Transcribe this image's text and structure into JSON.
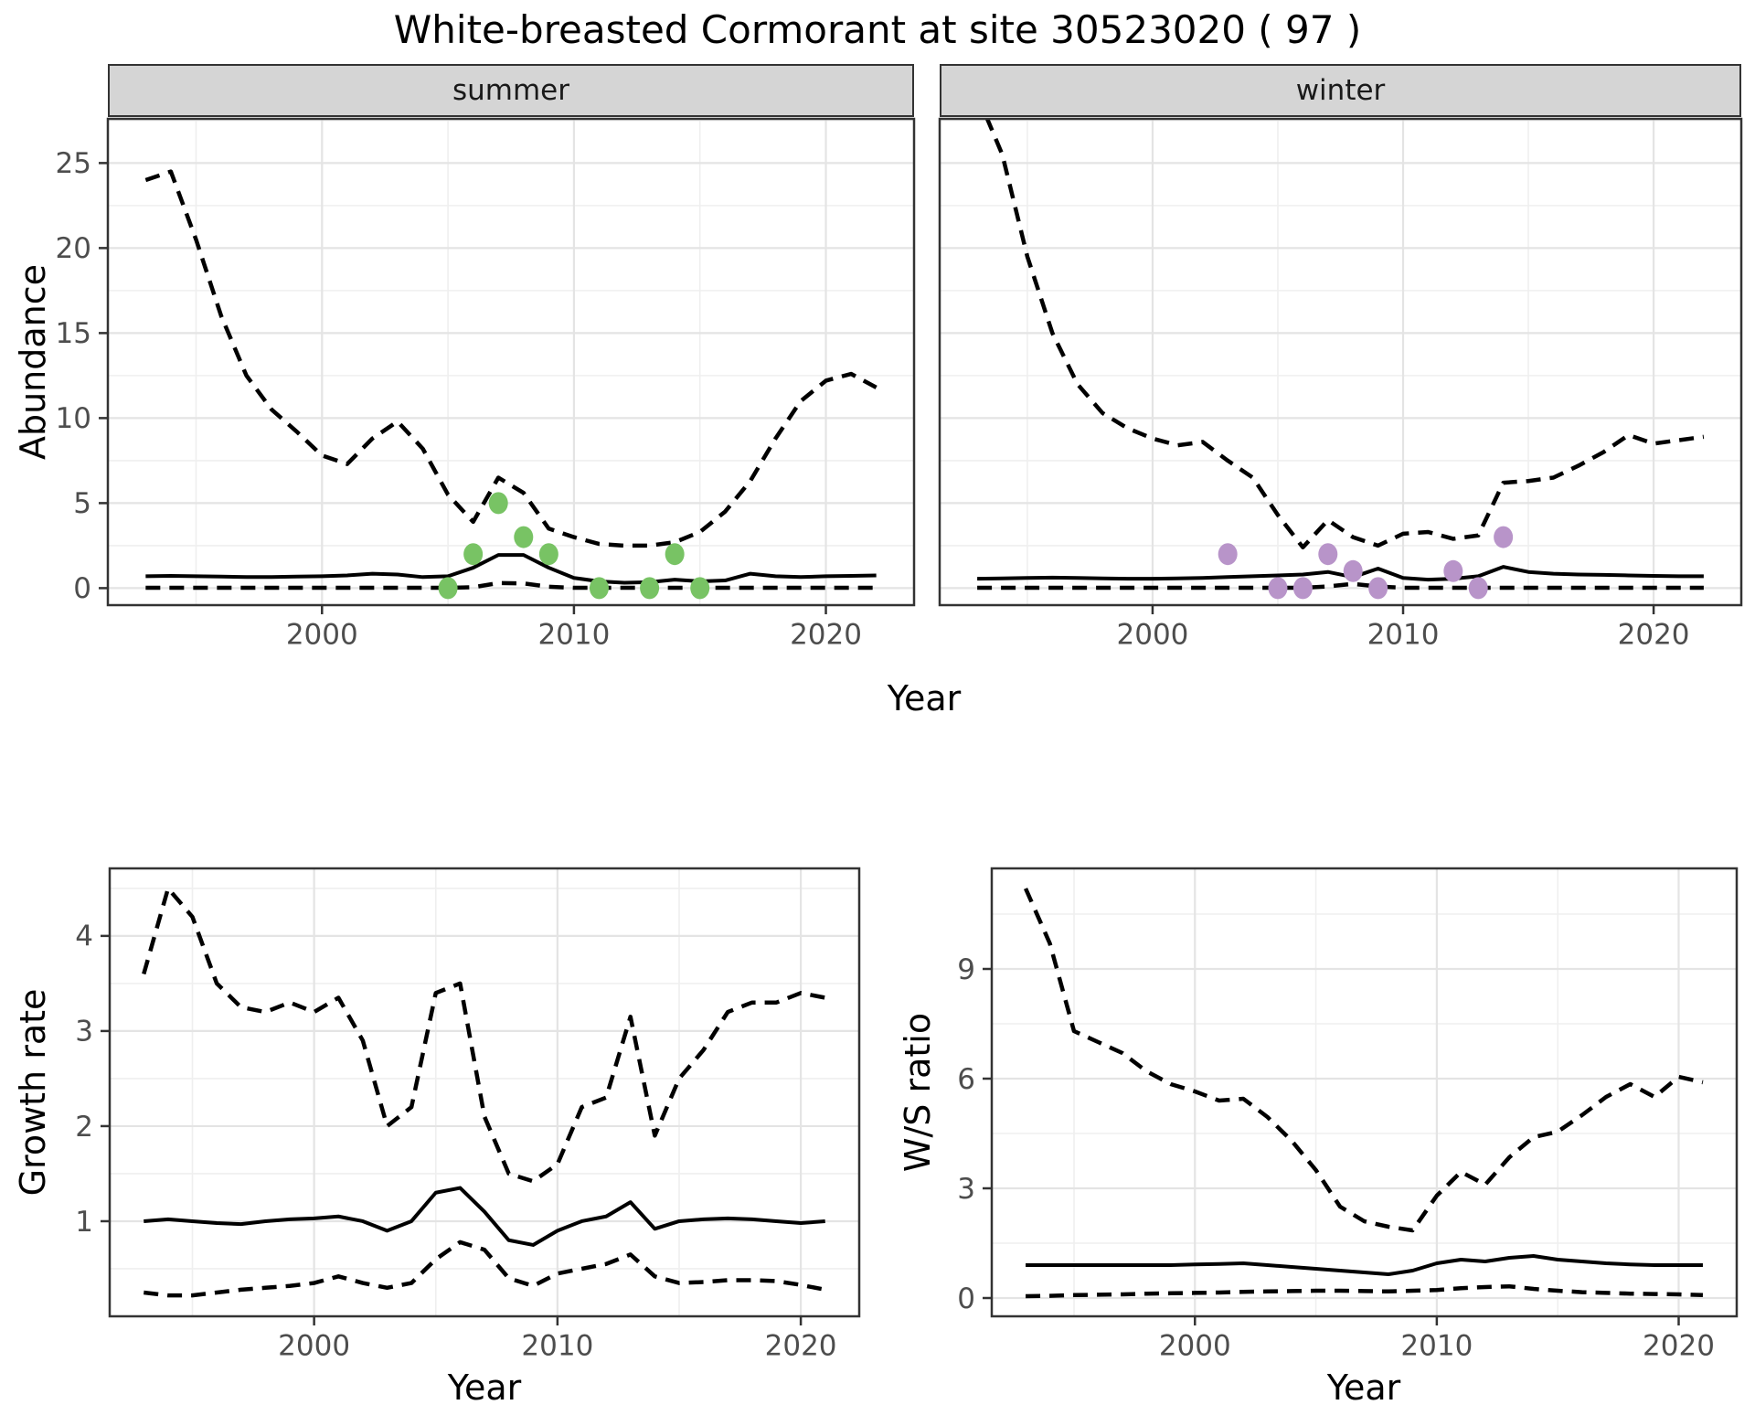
{
  "title": "White-breasted Cormorant at site 30523020 ( 97 )",
  "axes": {
    "abundance": "Abundance",
    "year": "Year",
    "growth_rate": "Growth rate",
    "ws_ratio": "W/S ratio"
  },
  "facets": {
    "summer": "summer",
    "winter": "winter"
  },
  "colors": {
    "line": "#000000",
    "summer_points": "#78C364",
    "winter_points": "#B894C9",
    "strip_bg": "#d5d5d5",
    "grid_major": "#e4e4e4",
    "grid_minor": "#efefef",
    "axis_text": "#4d4d4d",
    "panel_border": "#333333"
  },
  "chart_data": [
    {
      "id": "abundance-summer",
      "type": "line",
      "facet": "summer",
      "title": "",
      "xlabel": "Year",
      "ylabel": "Abundance",
      "x": [
        1993,
        1994,
        1995,
        1996,
        1997,
        1998,
        1999,
        2000,
        2001,
        2002,
        2003,
        2004,
        2005,
        2006,
        2007,
        2008,
        2009,
        2010,
        2011,
        2012,
        2013,
        2014,
        2015,
        2016,
        2017,
        2018,
        2019,
        2020,
        2021,
        2022
      ],
      "series": [
        {
          "name": "upper_ci",
          "style": "dashed",
          "values": [
            24.0,
            24.5,
            20.5,
            16.0,
            12.5,
            10.5,
            9.2,
            7.8,
            7.3,
            8.8,
            9.8,
            8.2,
            5.5,
            3.9,
            6.5,
            5.6,
            3.5,
            3.0,
            2.6,
            2.5,
            2.5,
            2.7,
            3.3,
            4.5,
            6.3,
            8.8,
            11.0,
            12.2,
            12.6,
            11.8
          ]
        },
        {
          "name": "median",
          "style": "solid",
          "values": [
            0.7,
            0.72,
            0.7,
            0.68,
            0.65,
            0.65,
            0.68,
            0.7,
            0.75,
            0.85,
            0.8,
            0.65,
            0.7,
            1.2,
            1.95,
            1.95,
            1.2,
            0.6,
            0.4,
            0.32,
            0.35,
            0.5,
            0.4,
            0.45,
            0.85,
            0.7,
            0.65,
            0.7,
            0.72,
            0.75
          ]
        },
        {
          "name": "lower_ci",
          "style": "dashed",
          "values": [
            0.02,
            0.02,
            0.02,
            0.02,
            0.02,
            0.02,
            0.02,
            0.02,
            0.02,
            0.02,
            0.02,
            0.02,
            0.02,
            0.05,
            0.3,
            0.28,
            0.08,
            0.02,
            0.02,
            0.02,
            0.02,
            0.02,
            0.02,
            0.02,
            0.02,
            0.02,
            0.02,
            0.02,
            0.02,
            0.02
          ]
        }
      ],
      "points": {
        "name": "summer_observations",
        "color": "#78C364",
        "data": [
          [
            2005,
            0
          ],
          [
            2006,
            2
          ],
          [
            2007,
            5
          ],
          [
            2008,
            3
          ],
          [
            2009,
            2
          ],
          [
            2011,
            0
          ],
          [
            2013,
            0
          ],
          [
            2014,
            2
          ],
          [
            2015,
            0
          ]
        ]
      },
      "xticks": [
        2000,
        2010,
        2020
      ],
      "yticks": [
        0,
        5,
        10,
        15,
        20,
        25
      ],
      "xlim": [
        1991.5,
        2023.5
      ],
      "ylim": [
        -1.0,
        27.6
      ],
      "grid": true,
      "legend": "none"
    },
    {
      "id": "abundance-winter",
      "type": "line",
      "facet": "winter",
      "title": "",
      "xlabel": "Year",
      "ylabel": "Abundance",
      "x": [
        1993,
        1994,
        1995,
        1996,
        1997,
        1998,
        1999,
        2000,
        2001,
        2002,
        2003,
        2004,
        2005,
        2006,
        2007,
        2008,
        2009,
        2010,
        2011,
        2012,
        2013,
        2014,
        2015,
        2016,
        2017,
        2018,
        2019,
        2020,
        2021,
        2022
      ],
      "series": [
        {
          "name": "upper_ci",
          "style": "dashed",
          "values": [
            29.0,
            25.5,
            19.5,
            15.0,
            12.0,
            10.3,
            9.4,
            8.8,
            8.4,
            8.6,
            7.5,
            6.5,
            4.3,
            2.4,
            4.0,
            3.0,
            2.5,
            3.2,
            3.3,
            2.9,
            3.1,
            6.2,
            6.3,
            6.5,
            7.2,
            8.0,
            9.0,
            8.5,
            8.7,
            8.9
          ]
        },
        {
          "name": "median",
          "style": "solid",
          "values": [
            0.55,
            0.57,
            0.6,
            0.62,
            0.6,
            0.57,
            0.55,
            0.55,
            0.57,
            0.6,
            0.65,
            0.7,
            0.75,
            0.8,
            0.95,
            0.65,
            1.15,
            0.6,
            0.5,
            0.55,
            0.7,
            1.25,
            0.95,
            0.85,
            0.8,
            0.78,
            0.75,
            0.72,
            0.7,
            0.7
          ]
        },
        {
          "name": "lower_ci",
          "style": "dashed",
          "values": [
            0.02,
            0.02,
            0.02,
            0.02,
            0.02,
            0.02,
            0.02,
            0.02,
            0.02,
            0.02,
            0.02,
            0.02,
            0.02,
            0.02,
            0.1,
            0.25,
            0.1,
            0.02,
            0.02,
            0.02,
            0.02,
            0.02,
            0.02,
            0.02,
            0.02,
            0.02,
            0.02,
            0.02,
            0.02,
            0.02
          ]
        }
      ],
      "points": {
        "name": "winter_observations",
        "color": "#B894C9",
        "data": [
          [
            2003,
            2
          ],
          [
            2005,
            0
          ],
          [
            2006,
            0
          ],
          [
            2007,
            2
          ],
          [
            2008,
            1
          ],
          [
            2009,
            0
          ],
          [
            2012,
            1
          ],
          [
            2013,
            0
          ],
          [
            2014,
            3
          ]
        ]
      },
      "xticks": [
        2000,
        2010,
        2020
      ],
      "yticks": [
        0,
        5,
        10,
        15,
        20,
        25
      ],
      "xlim": [
        1991.5,
        2023.5
      ],
      "ylim": [
        -1.0,
        27.6
      ],
      "grid": true,
      "legend": "none",
      "y_axis_labels": false
    },
    {
      "id": "growth-rate",
      "type": "line",
      "facet": "",
      "title": "",
      "xlabel": "Year",
      "ylabel": "Growth rate",
      "x": [
        1993,
        1994,
        1995,
        1996,
        1997,
        1998,
        1999,
        2000,
        2001,
        2002,
        2003,
        2004,
        2005,
        2006,
        2007,
        2008,
        2009,
        2010,
        2011,
        2012,
        2013,
        2014,
        2015,
        2016,
        2017,
        2018,
        2019,
        2020,
        2021
      ],
      "series": [
        {
          "name": "upper_ci",
          "style": "dashed",
          "values": [
            3.6,
            4.5,
            4.2,
            3.5,
            3.25,
            3.2,
            3.3,
            3.2,
            3.35,
            2.9,
            2.0,
            2.2,
            3.4,
            3.5,
            2.1,
            1.5,
            1.42,
            1.6,
            2.2,
            2.3,
            3.15,
            1.9,
            2.5,
            2.8,
            3.2,
            3.3,
            3.3,
            3.4,
            3.35
          ]
        },
        {
          "name": "median",
          "style": "solid",
          "values": [
            1.0,
            1.02,
            1.0,
            0.98,
            0.97,
            1.0,
            1.02,
            1.03,
            1.05,
            1.0,
            0.9,
            1.0,
            1.3,
            1.35,
            1.1,
            0.8,
            0.75,
            0.9,
            1.0,
            1.05,
            1.2,
            0.92,
            1.0,
            1.02,
            1.03,
            1.02,
            1.0,
            0.98,
            1.0
          ]
        },
        {
          "name": "lower_ci",
          "style": "dashed",
          "values": [
            0.25,
            0.22,
            0.22,
            0.25,
            0.28,
            0.3,
            0.32,
            0.35,
            0.42,
            0.35,
            0.3,
            0.35,
            0.6,
            0.78,
            0.7,
            0.4,
            0.32,
            0.45,
            0.5,
            0.55,
            0.65,
            0.42,
            0.35,
            0.36,
            0.38,
            0.38,
            0.37,
            0.33,
            0.28
          ]
        }
      ],
      "points": {
        "name": "none",
        "color": "#000000",
        "data": []
      },
      "xticks": [
        2000,
        2010,
        2020
      ],
      "yticks": [
        1,
        2,
        3,
        4
      ],
      "xlim": [
        1991.6,
        2022.4
      ],
      "ylim": [
        0.0,
        4.71
      ],
      "grid": true,
      "legend": "none"
    },
    {
      "id": "ws-ratio",
      "type": "line",
      "facet": "",
      "title": "",
      "xlabel": "Year",
      "ylabel": "W/S ratio",
      "x": [
        1993,
        1994,
        1995,
        1996,
        1997,
        1998,
        1999,
        2000,
        2001,
        2002,
        2003,
        2004,
        2005,
        2006,
        2007,
        2008,
        2009,
        2010,
        2011,
        2012,
        2013,
        2014,
        2015,
        2016,
        2017,
        2018,
        2019,
        2020,
        2021
      ],
      "series": [
        {
          "name": "upper_ci",
          "style": "dashed",
          "values": [
            11.2,
            9.7,
            7.3,
            7.0,
            6.7,
            6.2,
            5.85,
            5.65,
            5.4,
            5.45,
            4.95,
            4.3,
            3.5,
            2.5,
            2.1,
            1.95,
            1.85,
            2.8,
            3.45,
            3.1,
            3.85,
            4.4,
            4.55,
            5.0,
            5.5,
            5.85,
            5.5,
            6.05,
            5.9
          ]
        },
        {
          "name": "median",
          "style": "solid",
          "values": [
            0.9,
            0.9,
            0.9,
            0.9,
            0.9,
            0.9,
            0.9,
            0.92,
            0.93,
            0.95,
            0.9,
            0.85,
            0.8,
            0.75,
            0.7,
            0.65,
            0.75,
            0.95,
            1.05,
            1.0,
            1.1,
            1.15,
            1.05,
            1.0,
            0.95,
            0.92,
            0.9,
            0.9,
            0.9
          ]
        },
        {
          "name": "lower_ci",
          "style": "dashed",
          "values": [
            0.05,
            0.06,
            0.08,
            0.09,
            0.1,
            0.12,
            0.13,
            0.14,
            0.15,
            0.17,
            0.18,
            0.19,
            0.2,
            0.2,
            0.19,
            0.18,
            0.2,
            0.22,
            0.27,
            0.3,
            0.32,
            0.25,
            0.2,
            0.16,
            0.14,
            0.12,
            0.11,
            0.1,
            0.08
          ]
        }
      ],
      "points": {
        "name": "none",
        "color": "#000000",
        "data": []
      },
      "xticks": [
        2000,
        2010,
        2020
      ],
      "yticks": [
        0,
        3,
        6,
        9
      ],
      "xlim": [
        1991.6,
        2022.4
      ],
      "ylim": [
        -0.5,
        11.75
      ],
      "grid": true,
      "legend": "none"
    }
  ]
}
